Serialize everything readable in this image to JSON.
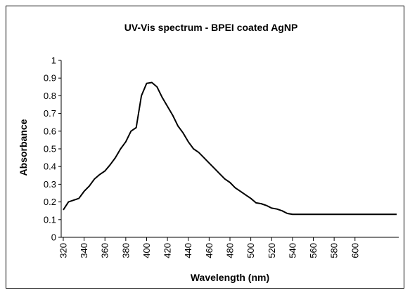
{
  "chart_data": {
    "type": "line",
    "title": "UV-Vis spectrum - BPEI coated AgNP",
    "x_label": "Wavelength (nm)",
    "y_label": "Absorbance",
    "x": [
      320,
      325,
      330,
      335,
      340,
      345,
      350,
      355,
      360,
      365,
      370,
      375,
      380,
      385,
      390,
      395,
      400,
      405,
      410,
      415,
      420,
      425,
      430,
      435,
      440,
      445,
      450,
      455,
      460,
      465,
      470,
      475,
      480,
      485,
      490,
      495,
      500,
      505,
      510,
      515,
      520,
      525,
      530,
      535,
      540,
      545,
      550,
      555,
      560,
      565,
      570,
      575,
      580,
      585,
      590,
      595,
      600,
      605,
      610,
      615,
      620,
      625,
      630,
      635,
      640
    ],
    "series": [
      {
        "name": "Absorbance",
        "color": "#000000",
        "values": [
          0.155,
          0.2,
          0.21,
          0.22,
          0.26,
          0.29,
          0.33,
          0.355,
          0.375,
          0.41,
          0.45,
          0.5,
          0.54,
          0.6,
          0.62,
          0.8,
          0.87,
          0.875,
          0.85,
          0.79,
          0.74,
          0.69,
          0.63,
          0.59,
          0.54,
          0.5,
          0.48,
          0.45,
          0.42,
          0.39,
          0.36,
          0.33,
          0.31,
          0.28,
          0.26,
          0.24,
          0.22,
          0.195,
          0.19,
          0.18,
          0.165,
          0.16,
          0.15,
          0.135,
          0.13,
          0.13,
          0.13,
          0.13,
          0.13,
          0.13,
          0.13,
          0.13,
          0.13,
          0.13,
          0.13,
          0.13,
          0.13,
          0.13,
          0.13,
          0.13,
          0.13,
          0.13,
          0.13,
          0.13,
          0.13
        ]
      }
    ],
    "xlim": [
      318,
      642
    ],
    "xticks": [
      320,
      340,
      360,
      380,
      400,
      420,
      440,
      460,
      480,
      500,
      520,
      540,
      560,
      580,
      600
    ],
    "ylim": [
      0,
      1
    ],
    "yticks": [
      0,
      0.1,
      0.2,
      0.3,
      0.4,
      0.5,
      0.6,
      0.7,
      0.8,
      0.9,
      1
    ],
    "grid": false
  }
}
